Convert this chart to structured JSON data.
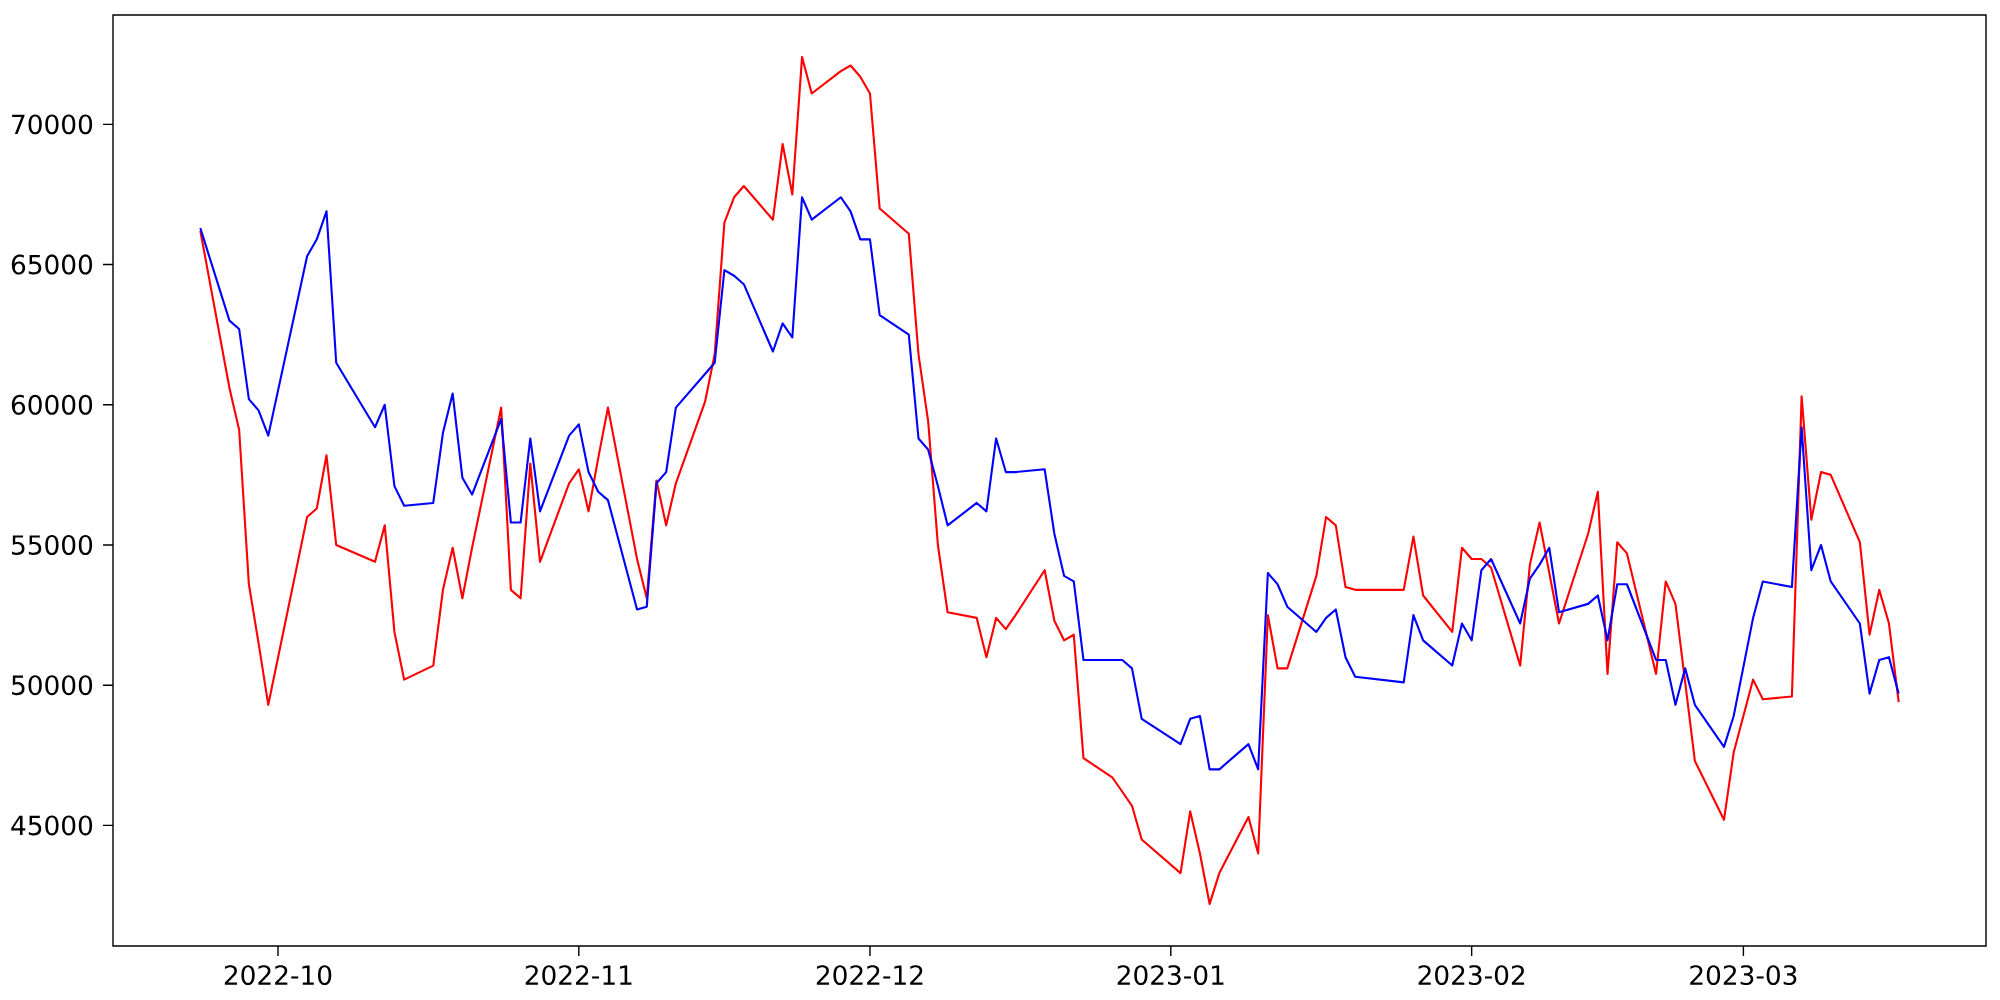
{
  "chart_data": {
    "type": "line",
    "x": [
      "2022-09-23",
      "2022-09-26",
      "2022-09-27",
      "2022-09-28",
      "2022-09-29",
      "2022-09-30",
      "2022-10-04",
      "2022-10-05",
      "2022-10-06",
      "2022-10-07",
      "2022-10-11",
      "2022-10-12",
      "2022-10-13",
      "2022-10-14",
      "2022-10-17",
      "2022-10-18",
      "2022-10-19",
      "2022-10-20",
      "2022-10-21",
      "2022-10-24",
      "2022-10-25",
      "2022-10-26",
      "2022-10-27",
      "2022-10-28",
      "2022-10-31",
      "2022-11-01",
      "2022-11-02",
      "2022-11-03",
      "2022-11-04",
      "2022-11-07",
      "2022-11-08",
      "2022-11-09",
      "2022-11-10",
      "2022-11-11",
      "2022-11-14",
      "2022-11-15",
      "2022-11-16",
      "2022-11-17",
      "2022-11-18",
      "2022-11-21",
      "2022-11-22",
      "2022-11-23",
      "2022-11-24",
      "2022-11-25",
      "2022-11-28",
      "2022-11-29",
      "2022-11-30",
      "2022-12-01",
      "2022-12-02",
      "2022-12-05",
      "2022-12-06",
      "2022-12-07",
      "2022-12-08",
      "2022-12-09",
      "2022-12-12",
      "2022-12-13",
      "2022-12-14",
      "2022-12-15",
      "2022-12-16",
      "2022-12-19",
      "2022-12-20",
      "2022-12-21",
      "2022-12-22",
      "2022-12-23",
      "2022-12-26",
      "2022-12-27",
      "2022-12-28",
      "2022-12-29",
      "2023-01-02",
      "2023-01-03",
      "2023-01-04",
      "2023-01-05",
      "2023-01-06",
      "2023-01-09",
      "2023-01-10",
      "2023-01-11",
      "2023-01-12",
      "2023-01-13",
      "2023-01-16",
      "2023-01-17",
      "2023-01-18",
      "2023-01-19",
      "2023-01-20",
      "2023-01-25",
      "2023-01-26",
      "2023-01-27",
      "2023-01-30",
      "2023-01-31",
      "2023-02-01",
      "2023-02-02",
      "2023-02-03",
      "2023-02-06",
      "2023-02-07",
      "2023-02-08",
      "2023-02-09",
      "2023-02-10",
      "2023-02-13",
      "2023-02-14",
      "2023-02-15",
      "2023-02-16",
      "2023-02-17",
      "2023-02-20",
      "2023-02-21",
      "2023-02-22",
      "2023-02-23",
      "2023-02-24",
      "2023-02-27",
      "2023-02-28",
      "2023-03-02",
      "2023-03-03",
      "2023-03-06",
      "2023-03-07",
      "2023-03-08",
      "2023-03-09",
      "2023-03-10",
      "2023-03-13",
      "2023-03-14",
      "2023-03-15",
      "2023-03-16",
      "2023-03-17"
    ],
    "series": [
      {
        "color": "#ff0000",
        "values": [
          66200,
          60600,
          59100,
          53600,
          51500,
          49300,
          56000,
          56300,
          58200,
          55000,
          54400,
          55700,
          51900,
          50200,
          50700,
          53400,
          54900,
          53100,
          54900,
          59900,
          53400,
          53100,
          57900,
          54400,
          57200,
          57700,
          56200,
          58100,
          59900,
          54500,
          53100,
          57300,
          55700,
          57200,
          60100,
          61800,
          66500,
          67400,
          67800,
          66600,
          69300,
          67500,
          72400,
          71100,
          71900,
          72100,
          71700,
          71100,
          67000,
          66100,
          61800,
          59400,
          55000,
          52600,
          52400,
          51000,
          52400,
          52000,
          52500,
          54100,
          52300,
          51600,
          51800,
          47400,
          46700,
          46200,
          45700,
          44500,
          43300,
          45500,
          44000,
          42200,
          43300,
          45300,
          44000,
          52500,
          50600,
          50600,
          53900,
          56000,
          55700,
          53500,
          53400,
          53400,
          55300,
          53200,
          51900,
          54900,
          54500,
          54500,
          54200,
          50700,
          54300,
          55800,
          54000,
          52200,
          55400,
          56900,
          50400,
          55100,
          54700,
          50400,
          53700,
          52900,
          50100,
          47300,
          45200,
          47600,
          50200,
          49500,
          49600,
          60300,
          55900,
          57600,
          57500,
          55100,
          51800,
          53400,
          52200,
          49400
        ]
      },
      {
        "color": "#0000ff",
        "values": [
          66300,
          63000,
          62700,
          60200,
          59800,
          58900,
          65300,
          65900,
          66900,
          61500,
          59200,
          60000,
          57100,
          56400,
          56500,
          59000,
          60400,
          57400,
          56800,
          59500,
          55800,
          55800,
          58800,
          56200,
          58900,
          59300,
          57600,
          56900,
          56600,
          52700,
          52800,
          57200,
          57600,
          59900,
          61100,
          61500,
          64800,
          64600,
          64300,
          61900,
          62900,
          62400,
          67400,
          66600,
          67400,
          66900,
          65900,
          65900,
          63200,
          62500,
          58800,
          58400,
          57100,
          55700,
          56500,
          56200,
          58800,
          57600,
          57600,
          57700,
          55400,
          53900,
          53700,
          50900,
          50900,
          50900,
          50600,
          48800,
          47900,
          48800,
          48900,
          47000,
          47000,
          47900,
          47000,
          54000,
          53600,
          52800,
          51900,
          52400,
          52700,
          51000,
          50300,
          50100,
          52500,
          51600,
          50700,
          52200,
          51600,
          54100,
          54500,
          52200,
          53800,
          54300,
          54900,
          52600,
          52900,
          53200,
          51600,
          53600,
          53600,
          50900,
          50900,
          49300,
          50600,
          49300,
          47800,
          48900,
          52400,
          53700,
          53500,
          59200,
          54100,
          55000,
          53700,
          52200,
          49700,
          50900,
          51000,
          49700
        ]
      }
    ],
    "xlim": [
      "2022-09-14",
      "2023-03-26"
    ],
    "xticks": [
      {
        "value": "2022-10-01",
        "label": "2022-10"
      },
      {
        "value": "2022-11-01",
        "label": "2022-11"
      },
      {
        "value": "2022-12-01",
        "label": "2022-12"
      },
      {
        "value": "2023-01-01",
        "label": "2023-01"
      },
      {
        "value": "2023-02-01",
        "label": "2023-02"
      },
      {
        "value": "2023-03-01",
        "label": "2023-03"
      }
    ],
    "ylim": [
      40700,
      73900
    ],
    "yticks": [
      45000,
      50000,
      55000,
      60000,
      65000,
      70000
    ]
  }
}
